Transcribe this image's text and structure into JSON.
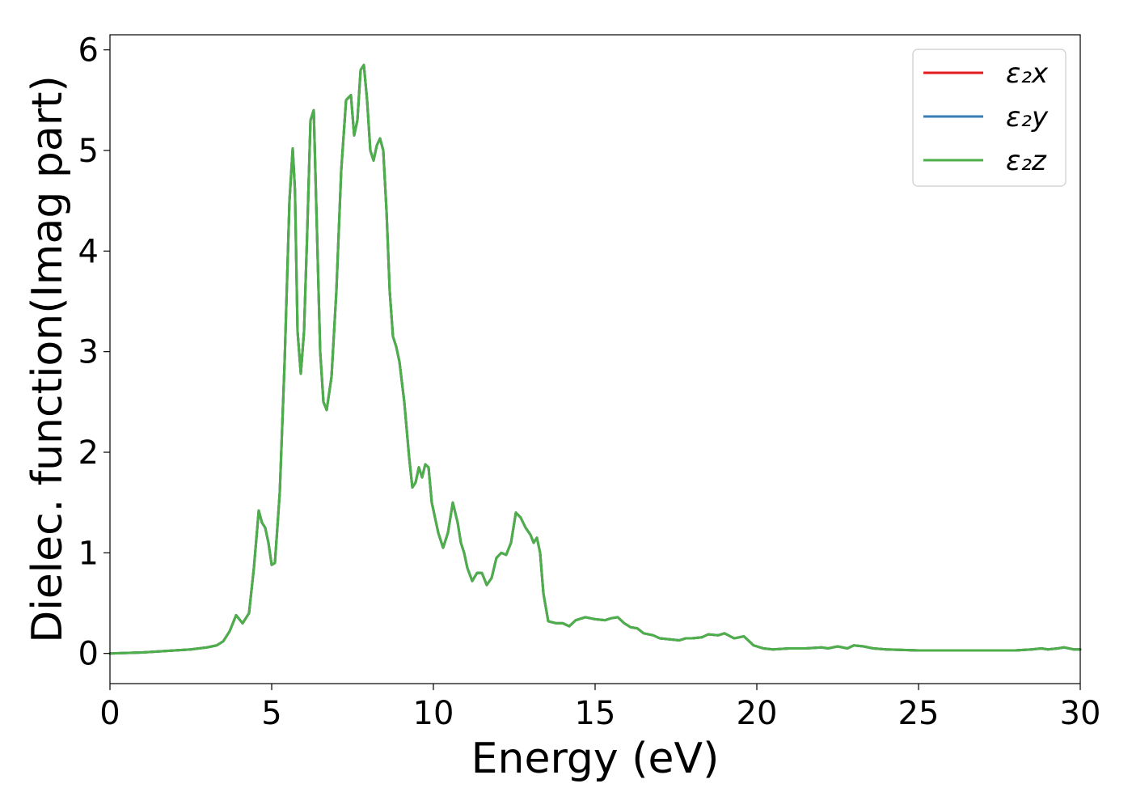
{
  "chart_data": {
    "type": "line",
    "title": "",
    "xlabel": "Energy (eV)",
    "ylabel": "Dielec. function(Imag part)",
    "xlim": [
      0,
      30
    ],
    "ylim": [
      -0.3,
      6.15
    ],
    "xticks": [
      0,
      5,
      10,
      15,
      20,
      25,
      30
    ],
    "xtick_labels": [
      "0",
      "5",
      "10",
      "15",
      "20",
      "25",
      "30"
    ],
    "yticks": [
      0,
      1,
      2,
      3,
      4,
      5,
      6
    ],
    "ytick_labels": [
      "0",
      "1",
      "2",
      "3",
      "4",
      "5",
      "6"
    ],
    "grid": false,
    "legend_position": "top-right",
    "x": [
      0,
      1,
      2,
      2.5,
      3,
      3.3,
      3.5,
      3.7,
      3.9,
      4.1,
      4.3,
      4.45,
      4.6,
      4.7,
      4.8,
      4.9,
      5.0,
      5.1,
      5.25,
      5.4,
      5.55,
      5.65,
      5.72,
      5.8,
      5.9,
      6.0,
      6.1,
      6.2,
      6.3,
      6.4,
      6.5,
      6.6,
      6.7,
      6.85,
      7.0,
      7.15,
      7.3,
      7.45,
      7.55,
      7.65,
      7.75,
      7.85,
      7.95,
      8.05,
      8.15,
      8.25,
      8.35,
      8.45,
      8.55,
      8.65,
      8.75,
      8.85,
      8.95,
      9.1,
      9.25,
      9.35,
      9.45,
      9.55,
      9.65,
      9.75,
      9.85,
      9.95,
      10.05,
      10.15,
      10.3,
      10.45,
      10.6,
      10.75,
      10.85,
      10.95,
      11.05,
      11.2,
      11.35,
      11.5,
      11.65,
      11.8,
      11.95,
      12.1,
      12.25,
      12.4,
      12.55,
      12.7,
      12.85,
      13.0,
      13.1,
      13.2,
      13.3,
      13.4,
      13.55,
      13.8,
      14.0,
      14.2,
      14.4,
      14.7,
      15.0,
      15.3,
      15.5,
      15.7,
      15.9,
      16.1,
      16.3,
      16.5,
      16.8,
      17.0,
      17.3,
      17.6,
      17.8,
      18.0,
      18.3,
      18.5,
      18.8,
      19.0,
      19.3,
      19.6,
      19.9,
      20.2,
      20.5,
      21.0,
      21.5,
      22.0,
      22.2,
      22.5,
      22.8,
      23.0,
      23.3,
      23.6,
      24.0,
      25.0,
      26.0,
      27.0,
      28.0,
      28.5,
      28.8,
      29.0,
      29.3,
      29.5,
      29.8,
      30.0
    ],
    "series": [
      {
        "name": "ε₂x",
        "color": "#e41a1c",
        "y": [
          0.0,
          0.01,
          0.03,
          0.04,
          0.06,
          0.08,
          0.12,
          0.22,
          0.38,
          0.3,
          0.4,
          0.85,
          1.42,
          1.3,
          1.25,
          1.1,
          0.88,
          0.9,
          1.6,
          2.9,
          4.5,
          5.02,
          4.6,
          3.2,
          2.78,
          3.2,
          4.2,
          5.3,
          5.4,
          4.2,
          3.0,
          2.5,
          2.42,
          2.75,
          3.6,
          4.8,
          5.5,
          5.55,
          5.15,
          5.3,
          5.8,
          5.85,
          5.5,
          5.0,
          4.9,
          5.05,
          5.12,
          5.0,
          4.4,
          3.6,
          3.15,
          3.05,
          2.9,
          2.5,
          1.95,
          1.65,
          1.7,
          1.85,
          1.75,
          1.88,
          1.85,
          1.5,
          1.35,
          1.2,
          1.05,
          1.2,
          1.5,
          1.3,
          1.1,
          1.0,
          0.85,
          0.72,
          0.8,
          0.8,
          0.68,
          0.75,
          0.95,
          1.0,
          0.98,
          1.1,
          1.4,
          1.35,
          1.25,
          1.18,
          1.1,
          1.15,
          1.0,
          0.6,
          0.32,
          0.3,
          0.3,
          0.27,
          0.33,
          0.36,
          0.34,
          0.33,
          0.35,
          0.36,
          0.3,
          0.26,
          0.25,
          0.2,
          0.18,
          0.15,
          0.14,
          0.13,
          0.15,
          0.15,
          0.16,
          0.19,
          0.18,
          0.2,
          0.15,
          0.17,
          0.08,
          0.05,
          0.04,
          0.05,
          0.05,
          0.06,
          0.05,
          0.07,
          0.05,
          0.08,
          0.07,
          0.05,
          0.04,
          0.03,
          0.03,
          0.03,
          0.03,
          0.04,
          0.05,
          0.04,
          0.05,
          0.06,
          0.04,
          0.04
        ]
      },
      {
        "name": "ε₂y",
        "color": "#377eb8",
        "y": [
          0.0,
          0.01,
          0.03,
          0.04,
          0.06,
          0.08,
          0.12,
          0.22,
          0.38,
          0.3,
          0.4,
          0.85,
          1.42,
          1.3,
          1.25,
          1.1,
          0.88,
          0.9,
          1.6,
          2.9,
          4.5,
          5.02,
          4.6,
          3.2,
          2.78,
          3.2,
          4.2,
          5.3,
          5.4,
          4.2,
          3.0,
          2.5,
          2.42,
          2.75,
          3.6,
          4.8,
          5.5,
          5.55,
          5.15,
          5.3,
          5.8,
          5.85,
          5.5,
          5.0,
          4.9,
          5.05,
          5.12,
          5.0,
          4.4,
          3.6,
          3.15,
          3.05,
          2.9,
          2.5,
          1.95,
          1.65,
          1.7,
          1.85,
          1.75,
          1.88,
          1.85,
          1.5,
          1.35,
          1.2,
          1.05,
          1.2,
          1.5,
          1.3,
          1.1,
          1.0,
          0.85,
          0.72,
          0.8,
          0.8,
          0.68,
          0.75,
          0.95,
          1.0,
          0.98,
          1.1,
          1.4,
          1.35,
          1.25,
          1.18,
          1.1,
          1.15,
          1.0,
          0.6,
          0.32,
          0.3,
          0.3,
          0.27,
          0.33,
          0.36,
          0.34,
          0.33,
          0.35,
          0.36,
          0.3,
          0.26,
          0.25,
          0.2,
          0.18,
          0.15,
          0.14,
          0.13,
          0.15,
          0.15,
          0.16,
          0.19,
          0.18,
          0.2,
          0.15,
          0.17,
          0.08,
          0.05,
          0.04,
          0.05,
          0.05,
          0.06,
          0.05,
          0.07,
          0.05,
          0.08,
          0.07,
          0.05,
          0.04,
          0.03,
          0.03,
          0.03,
          0.03,
          0.04,
          0.05,
          0.04,
          0.05,
          0.06,
          0.04,
          0.04
        ]
      },
      {
        "name": "ε₂z",
        "color": "#4daf4a",
        "y": [
          0.0,
          0.01,
          0.03,
          0.04,
          0.06,
          0.08,
          0.12,
          0.22,
          0.38,
          0.3,
          0.4,
          0.85,
          1.42,
          1.3,
          1.25,
          1.1,
          0.88,
          0.9,
          1.6,
          2.9,
          4.5,
          5.02,
          4.6,
          3.2,
          2.78,
          3.2,
          4.2,
          5.3,
          5.4,
          4.2,
          3.0,
          2.5,
          2.42,
          2.75,
          3.6,
          4.8,
          5.5,
          5.55,
          5.15,
          5.3,
          5.8,
          5.85,
          5.5,
          5.0,
          4.9,
          5.05,
          5.12,
          5.0,
          4.4,
          3.6,
          3.15,
          3.05,
          2.9,
          2.5,
          1.95,
          1.65,
          1.7,
          1.85,
          1.75,
          1.88,
          1.85,
          1.5,
          1.35,
          1.2,
          1.05,
          1.2,
          1.5,
          1.3,
          1.1,
          1.0,
          0.85,
          0.72,
          0.8,
          0.8,
          0.68,
          0.75,
          0.95,
          1.0,
          0.98,
          1.1,
          1.4,
          1.35,
          1.25,
          1.18,
          1.1,
          1.15,
          1.0,
          0.6,
          0.32,
          0.3,
          0.3,
          0.27,
          0.33,
          0.36,
          0.34,
          0.33,
          0.35,
          0.36,
          0.3,
          0.26,
          0.25,
          0.2,
          0.18,
          0.15,
          0.14,
          0.13,
          0.15,
          0.15,
          0.16,
          0.19,
          0.18,
          0.2,
          0.15,
          0.17,
          0.08,
          0.05,
          0.04,
          0.05,
          0.05,
          0.06,
          0.05,
          0.07,
          0.05,
          0.08,
          0.07,
          0.05,
          0.04,
          0.03,
          0.03,
          0.03,
          0.03,
          0.04,
          0.05,
          0.04,
          0.05,
          0.06,
          0.04,
          0.04
        ]
      }
    ]
  }
}
